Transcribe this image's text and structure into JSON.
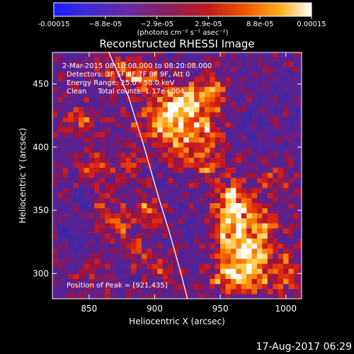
{
  "colorbar": {
    "tick_labels": [
      "-0.00015",
      "−8.8e-05",
      "−2.9e-05",
      "2.9e-05",
      "8.8e-05",
      "0.00015"
    ],
    "unit_label": "(photons cm⁻² s⁻¹ asec⁻²)",
    "range": [
      -0.00015,
      0.00015
    ]
  },
  "chart_data": {
    "type": "heatmap",
    "title": "Reconstructed RHESSI Image",
    "xlabel": "Heliocentric X (arcsec)",
    "ylabel": "Heliocentric Y (arcsec)",
    "xlim": [
      822,
      1012
    ],
    "ylim": [
      280,
      475
    ],
    "x_ticks": [
      850,
      900,
      950,
      1000
    ],
    "y_ticks": [
      300,
      350,
      400,
      450
    ],
    "annotations": [
      "2-Mar-2015 08:10:08.000 to 08:20:08.000",
      "Detectors: 3F 5F 6F 7F 8F 9F, Att 0",
      "Energy Range: 25.0 - 50.0 keV",
      "Clean     Total counts: 1.17e+004"
    ],
    "peak_label": "Position of Peak = [921,435]",
    "peak": [
      921,
      435
    ],
    "limb_curve": [
      [
        865,
        475
      ],
      [
        880,
        440
      ],
      [
        892,
        400
      ],
      [
        903,
        360
      ],
      [
        912,
        330
      ],
      [
        920,
        300
      ],
      [
        925,
        280
      ]
    ],
    "blobs": [
      {
        "x": 921,
        "y": 436,
        "sx": 12,
        "sy": 9,
        "a": 1.0
      },
      {
        "x": 905,
        "y": 418,
        "sx": 14,
        "sy": 10,
        "a": 0.75
      },
      {
        "x": 935,
        "y": 410,
        "sx": 12,
        "sy": 12,
        "a": 0.7
      },
      {
        "x": 890,
        "y": 455,
        "sx": 10,
        "sy": 9,
        "a": 0.6
      },
      {
        "x": 945,
        "y": 445,
        "sx": 9,
        "sy": 10,
        "a": 0.55
      },
      {
        "x": 870,
        "y": 462,
        "sx": 10,
        "sy": 8,
        "a": 0.45
      },
      {
        "x": 958,
        "y": 335,
        "sx": 11,
        "sy": 18,
        "a": 0.85
      },
      {
        "x": 975,
        "y": 310,
        "sx": 12,
        "sy": 16,
        "a": 0.8
      },
      {
        "x": 960,
        "y": 360,
        "sx": 8,
        "sy": 10,
        "a": 0.6
      },
      {
        "x": 985,
        "y": 340,
        "sx": 9,
        "sy": 9,
        "a": 0.55
      },
      {
        "x": 955,
        "y": 295,
        "sx": 10,
        "sy": 8,
        "a": 0.6
      },
      {
        "x": 940,
        "y": 385,
        "sx": 8,
        "sy": 7,
        "a": 0.5
      },
      {
        "x": 1000,
        "y": 300,
        "sx": 8,
        "sy": 10,
        "a": 0.5
      },
      {
        "x": 845,
        "y": 420,
        "sx": 10,
        "sy": 8,
        "a": 0.45
      },
      {
        "x": 855,
        "y": 385,
        "sx": 8,
        "sy": 8,
        "a": 0.5
      },
      {
        "x": 880,
        "y": 385,
        "sx": 8,
        "sy": 10,
        "a": 0.4
      },
      {
        "x": 870,
        "y": 340,
        "sx": 9,
        "sy": 8,
        "a": 0.55
      },
      {
        "x": 895,
        "y": 350,
        "sx": 8,
        "sy": 9,
        "a": 0.5
      },
      {
        "x": 885,
        "y": 320,
        "sx": 7,
        "sy": 7,
        "a": 0.45
      },
      {
        "x": 905,
        "y": 305,
        "sx": 8,
        "sy": 8,
        "a": 0.4
      },
      {
        "x": 850,
        "y": 300,
        "sx": 8,
        "sy": 7,
        "a": 0.35
      },
      {
        "x": 860,
        "y": 360,
        "sx": 7,
        "sy": 7,
        "a": 0.35
      },
      {
        "x": 915,
        "y": 395,
        "sx": 8,
        "sy": 8,
        "a": 0.45
      },
      {
        "x": 990,
        "y": 375,
        "sx": 8,
        "sy": 8,
        "a": 0.35
      }
    ],
    "cold_spots": [
      {
        "x": 840,
        "y": 330,
        "sx": 8,
        "sy": 8,
        "a": 0.4
      },
      {
        "x": 845,
        "y": 360,
        "sx": 6,
        "sy": 7,
        "a": 0.3
      },
      {
        "x": 975,
        "y": 420,
        "sx": 10,
        "sy": 10,
        "a": 0.25
      },
      {
        "x": 930,
        "y": 340,
        "sx": 7,
        "sy": 8,
        "a": 0.2
      },
      {
        "x": 1000,
        "y": 440,
        "sx": 8,
        "sy": 8,
        "a": 0.2
      }
    ]
  },
  "footer": {
    "date": "17-Aug-2017 06:29"
  }
}
